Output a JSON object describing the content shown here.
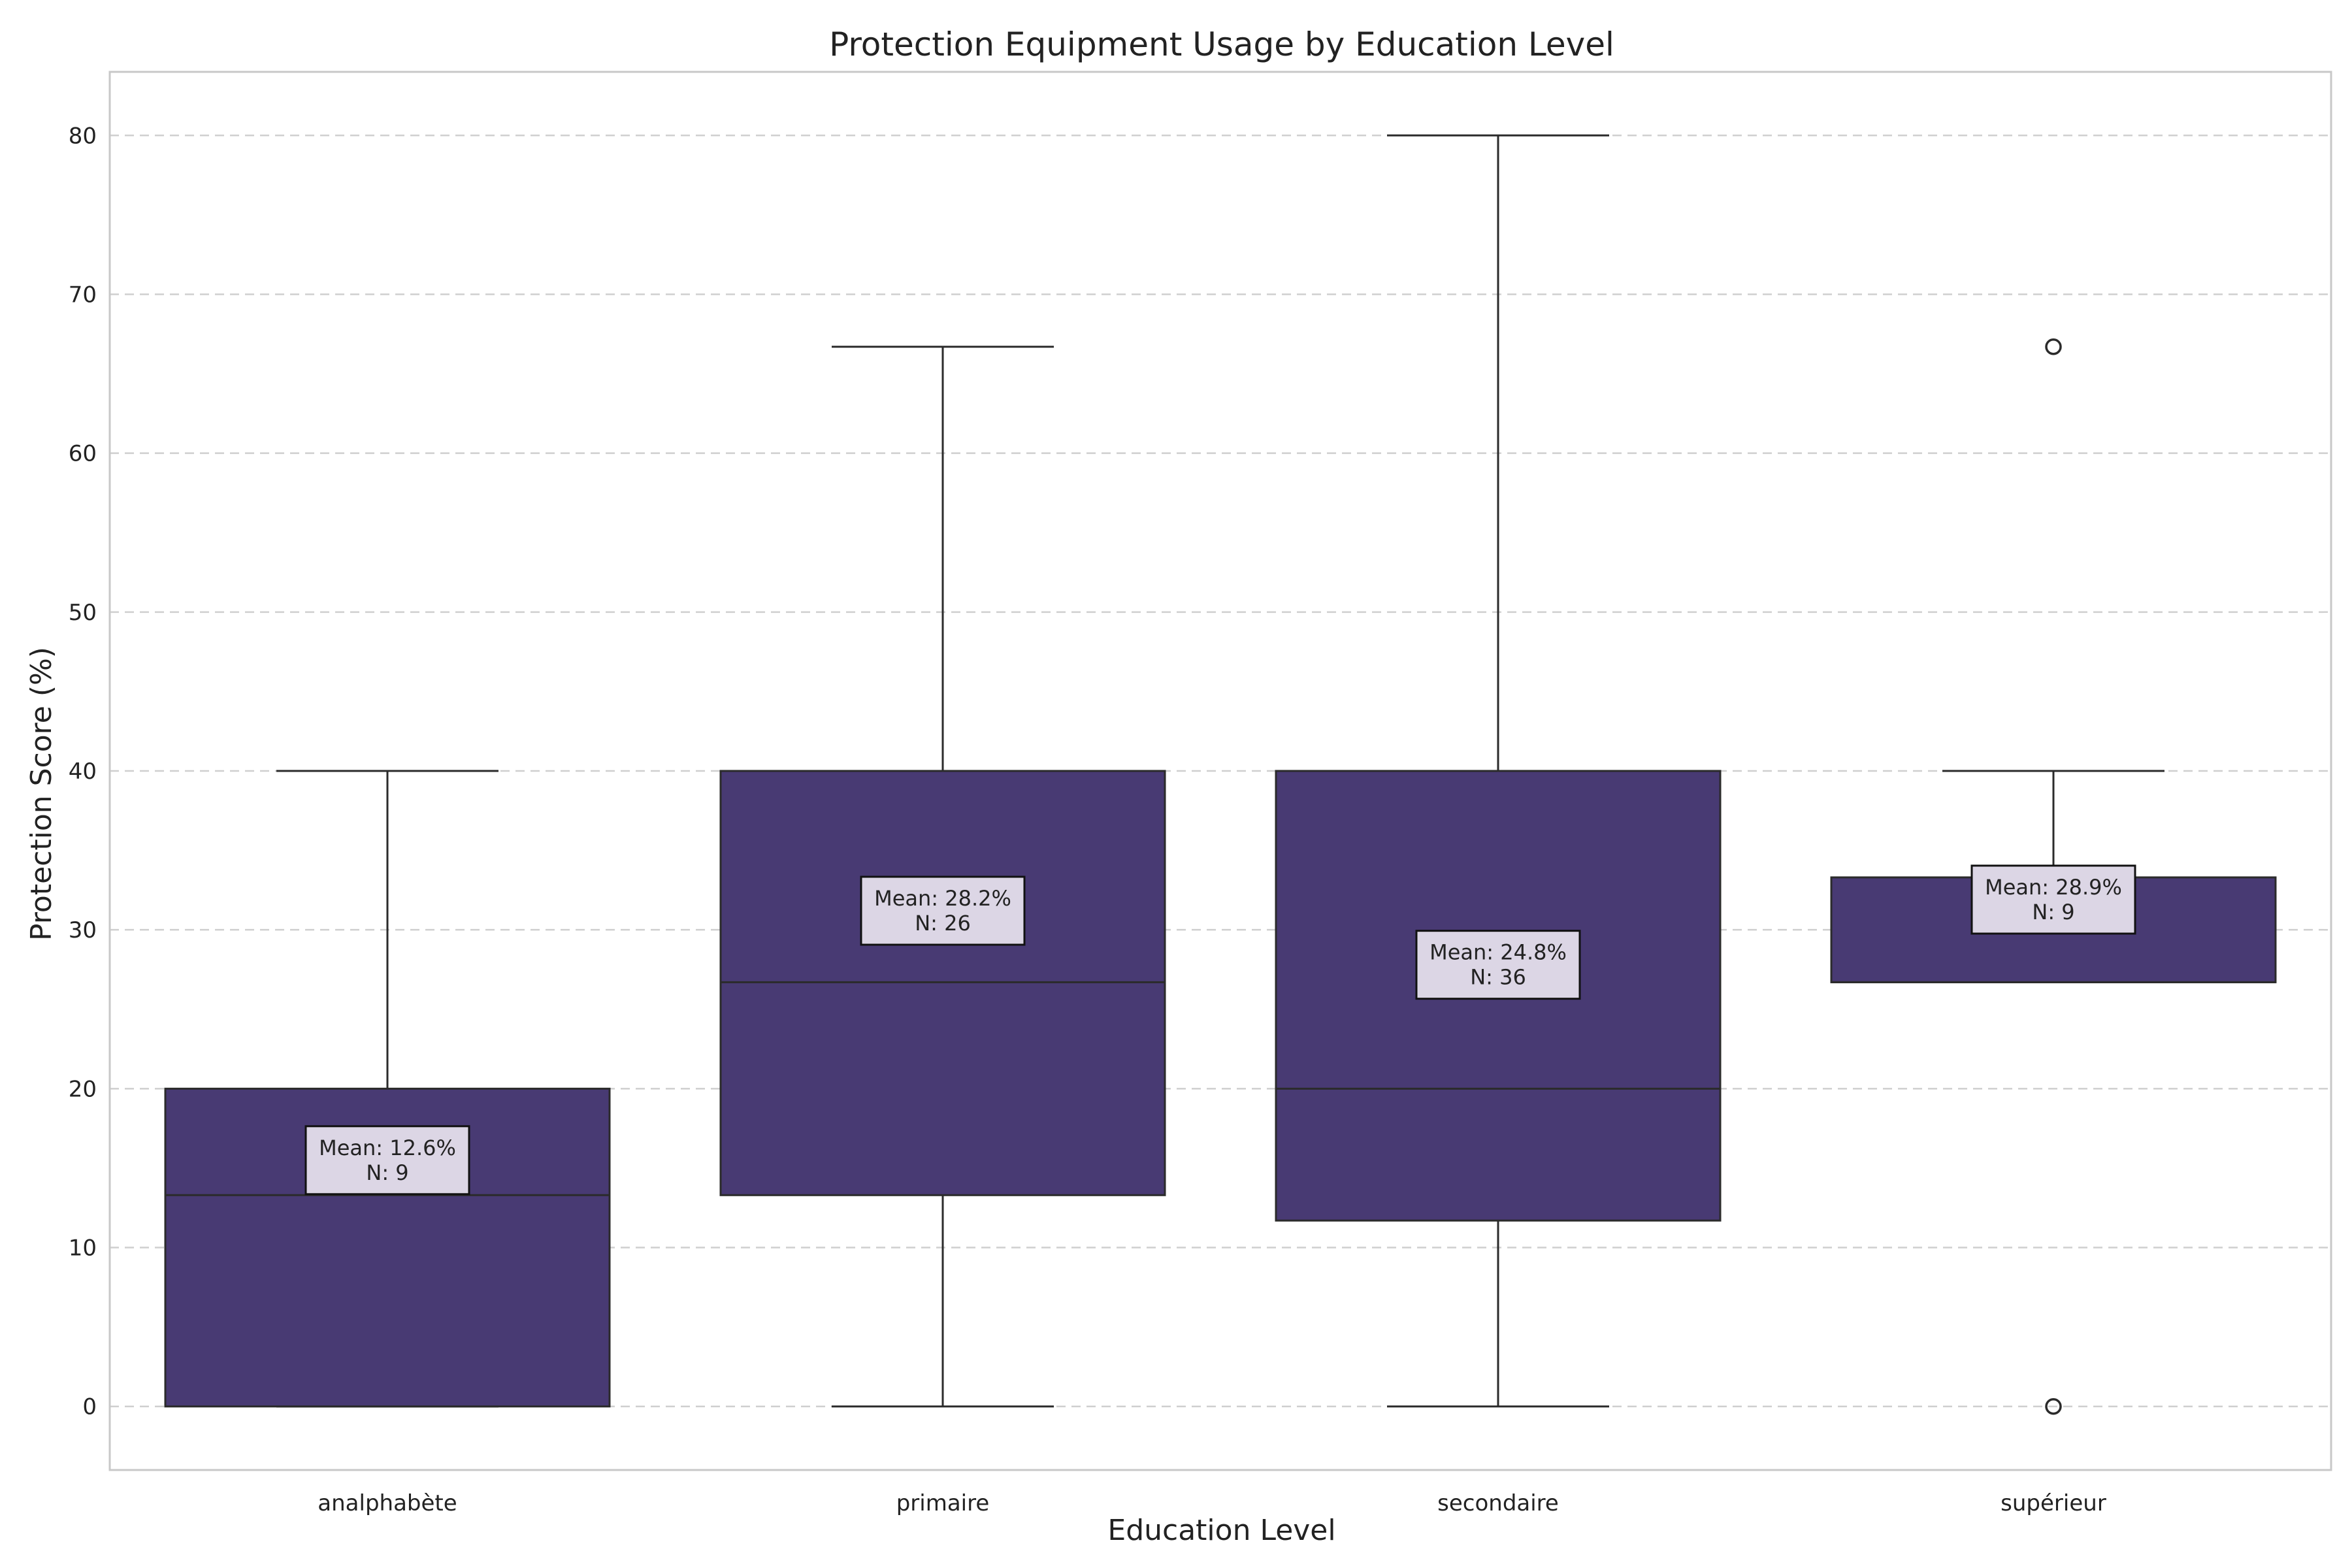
{
  "chart_data": {
    "type": "box",
    "title": "Protection Equipment Usage by Education Level",
    "xlabel": "Education Level",
    "ylabel": "Protection Score (%)",
    "ylim": [
      -4,
      84
    ],
    "yticks": [
      0,
      10,
      20,
      30,
      40,
      50,
      60,
      70,
      80
    ],
    "grid": "y-dashed",
    "colors": {
      "box_fill": "#483A73",
      "line": "#2b2b2b",
      "annotation_fill": "#DCD6E5",
      "grid": "#cfcfcf",
      "frame": "#c8c8c8"
    },
    "categories": [
      "analphabète",
      "primaire",
      "secondaire",
      "supérieur"
    ],
    "boxes": [
      {
        "category": "analphabète",
        "whisker_low": 0,
        "q1": 0,
        "median": 13.3,
        "q3": 20,
        "whisker_high": 40,
        "outliers": [],
        "mean_label": "Mean: 12.6%",
        "n_label": "N: 9",
        "label_y": 15.5
      },
      {
        "category": "primaire",
        "whisker_low": 0,
        "q1": 13.3,
        "median": 26.7,
        "q3": 40,
        "whisker_high": 66.7,
        "outliers": [],
        "mean_label": "Mean: 28.2%",
        "n_label": "N: 26",
        "label_y": 31.2
      },
      {
        "category": "secondaire",
        "whisker_low": 0,
        "q1": 11.7,
        "median": 20,
        "q3": 40,
        "whisker_high": 80,
        "outliers": [],
        "mean_label": "Mean: 24.8%",
        "n_label": "N: 36",
        "label_y": 27.8
      },
      {
        "category": "supérieur",
        "whisker_low": 26.7,
        "q1": 26.7,
        "median": 26.7,
        "q3": 33.3,
        "whisker_high": 40,
        "outliers": [
          66.7,
          0
        ],
        "mean_label": "Mean: 28.9%",
        "n_label": "N: 9",
        "label_y": 31.9
      }
    ]
  }
}
